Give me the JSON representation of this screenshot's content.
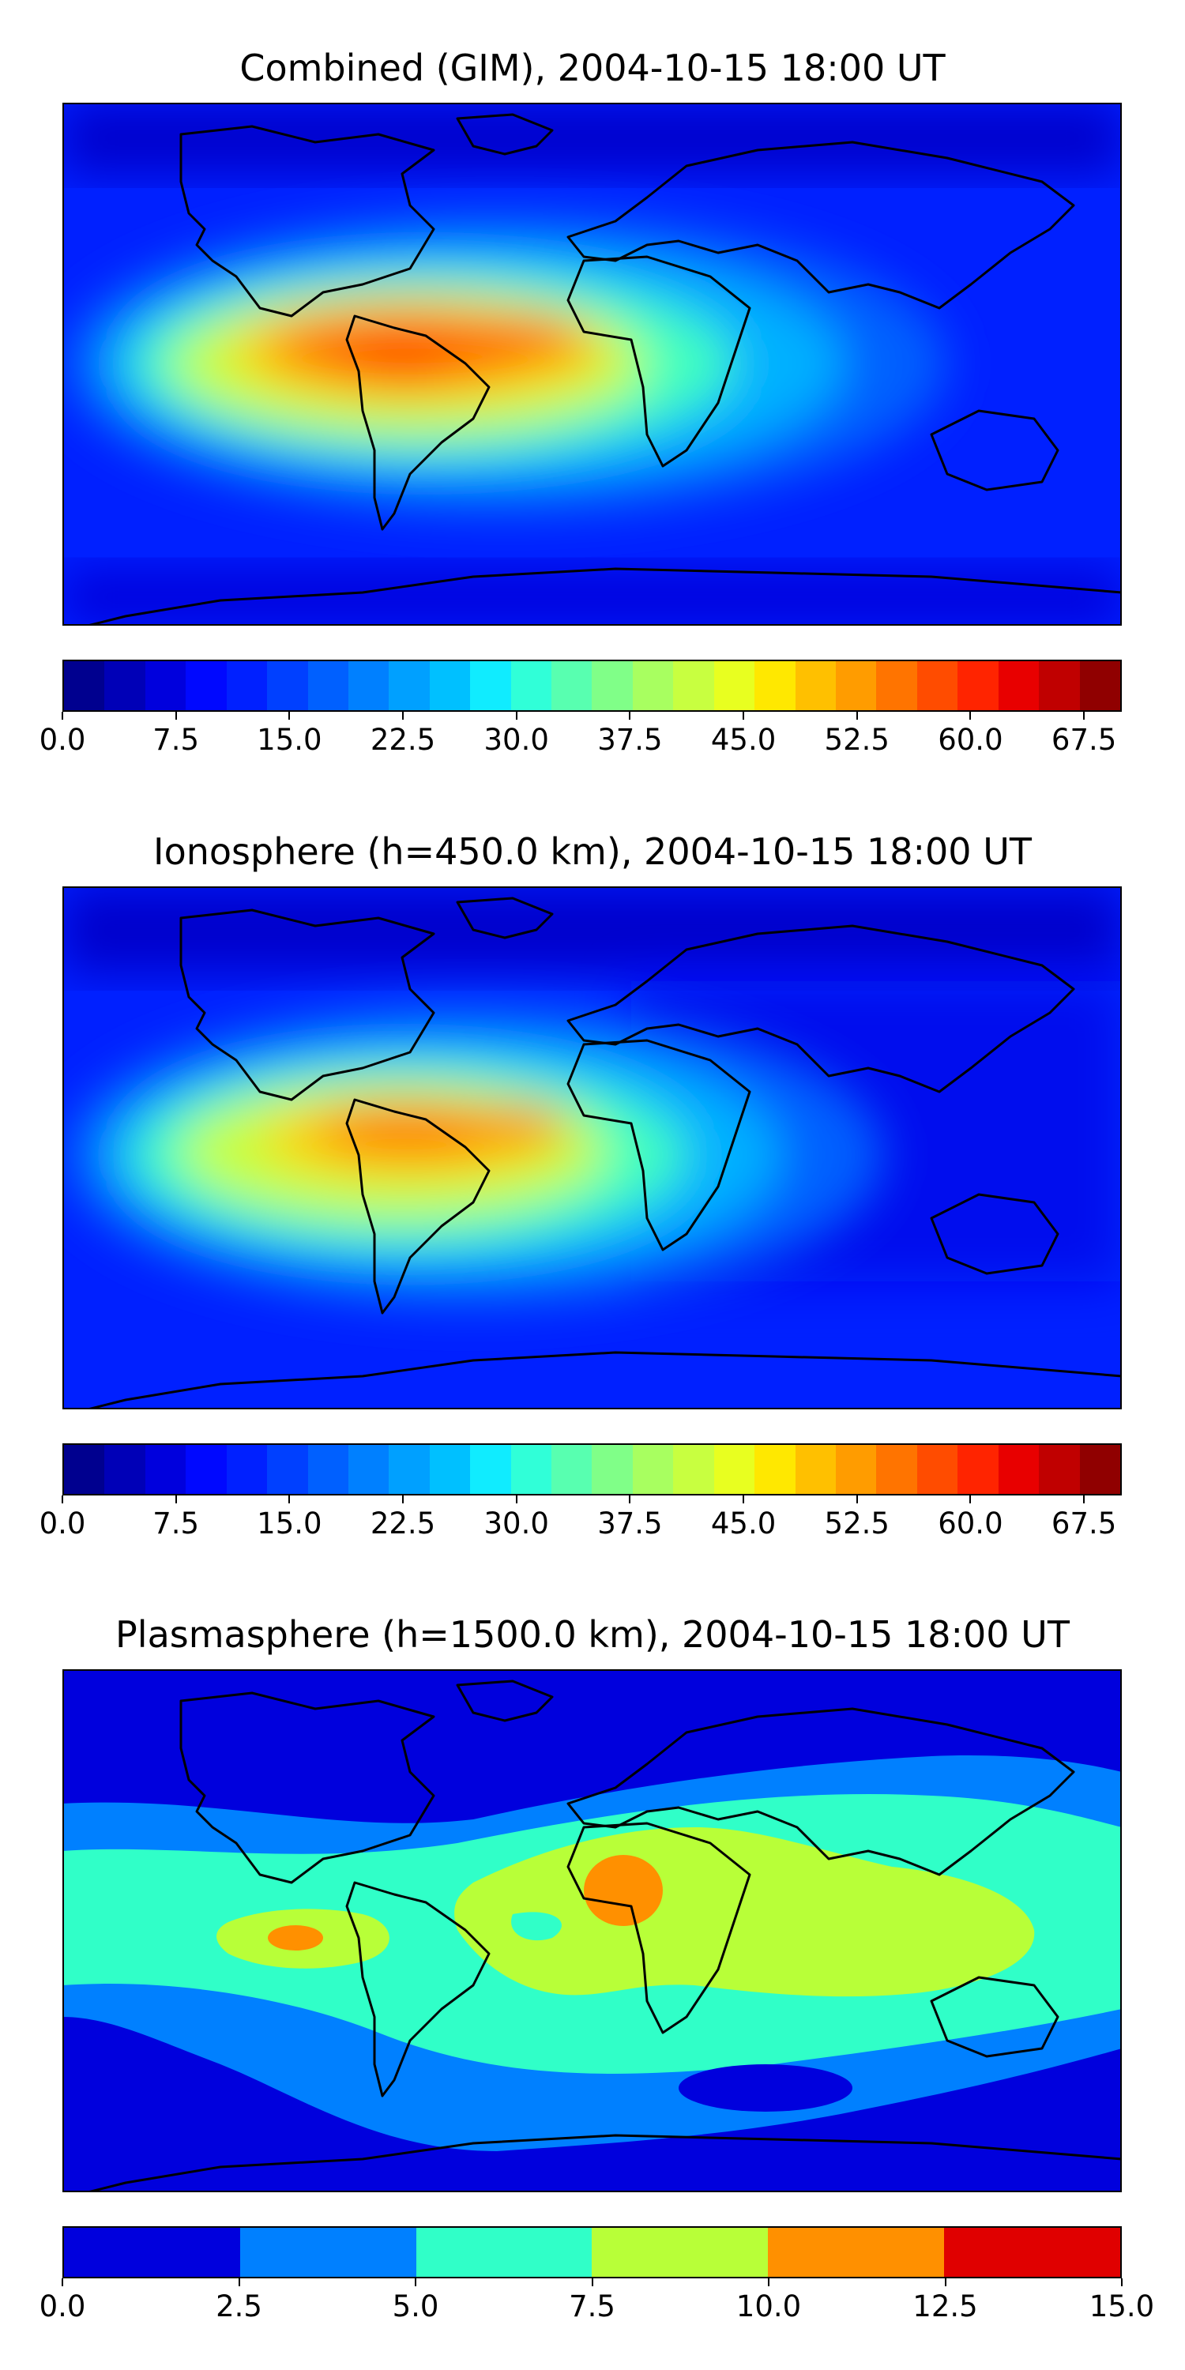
{
  "panels": [
    {
      "title": "Combined (GIM), 2004-10-15 18:00 UT",
      "colorbar_ticks": [
        "0.0",
        "7.5",
        "15.0",
        "22.5",
        "30.0",
        "37.5",
        "45.0",
        "52.5",
        "60.0",
        "67.5"
      ],
      "colorbar_range": [
        0,
        70
      ],
      "colorbar_colors": [
        "#00008f",
        "#0000b7",
        "#0000dd",
        "#0008ff",
        "#0020ff",
        "#0040ff",
        "#0060ff",
        "#0080ff",
        "#00a0ff",
        "#00c0ff",
        "#10ecff",
        "#30ffd8",
        "#58ffb0",
        "#80ff88",
        "#a8ff60",
        "#c8ff40",
        "#e8ff20",
        "#ffe800",
        "#ffc000",
        "#ff9c00",
        "#ff7400",
        "#ff4c00",
        "#ff2400",
        "#e80000",
        "#c00000",
        "#900000"
      ]
    },
    {
      "title": "Ionosphere  (h=450.0 km), 2004-10-15 18:00 UT",
      "colorbar_ticks": [
        "0.0",
        "7.5",
        "15.0",
        "22.5",
        "30.0",
        "37.5",
        "45.0",
        "52.5",
        "60.0",
        "67.5"
      ],
      "colorbar_range": [
        0,
        70
      ],
      "colorbar_colors": [
        "#00008f",
        "#0000b7",
        "#0000dd",
        "#0008ff",
        "#0020ff",
        "#0040ff",
        "#0060ff",
        "#0080ff",
        "#00a0ff",
        "#00c0ff",
        "#10ecff",
        "#30ffd8",
        "#58ffb0",
        "#80ff88",
        "#a8ff60",
        "#c8ff40",
        "#e8ff20",
        "#ffe800",
        "#ffc000",
        "#ff9c00",
        "#ff7400",
        "#ff4c00",
        "#ff2400",
        "#e80000",
        "#c00000",
        "#900000"
      ]
    },
    {
      "title": "Plasmasphere (h=1500.0 km), 2004-10-15 18:00 UT",
      "colorbar_ticks": [
        "0.0",
        "2.5",
        "5.0",
        "7.5",
        "10.0",
        "12.5",
        "15.0"
      ],
      "colorbar_range": [
        0,
        15
      ],
      "colorbar_colors": [
        "#0000dd",
        "#0080ff",
        "#30ffc8",
        "#b8ff38",
        "#ff9000",
        "#e00000"
      ]
    }
  ]
}
